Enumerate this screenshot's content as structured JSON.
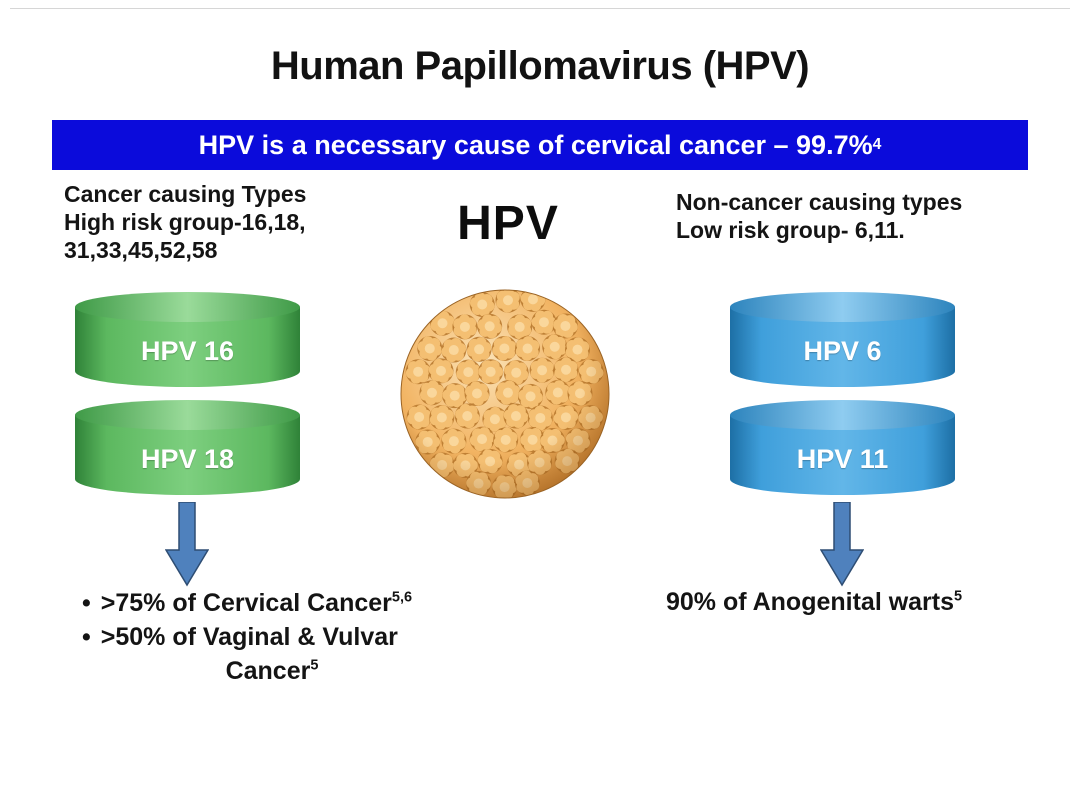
{
  "slide": {
    "title": "Human Papillomavirus (HPV)",
    "banner": {
      "text": "HPV is a necessary cause of cervical cancer – 99.7%",
      "superscript": "4",
      "bg_color": "#0b0bdb",
      "text_color": "#ffffff"
    },
    "center": {
      "label": "HPV",
      "virus_icon": "hpv-virion"
    },
    "left_column": {
      "heading_lines": [
        "Cancer causing Types",
        "High risk group-16,18,",
        "31,33,45,52,58"
      ],
      "cylinders": [
        {
          "label": "HPV 16"
        },
        {
          "label": "HPV 18"
        }
      ],
      "cylinder_color": "#54ae54",
      "results": [
        {
          "bullet": "•",
          "text": ">75% of Cervical Cancer",
          "superscript": "5,6"
        },
        {
          "bullet": "•",
          "text": ">50% of Vaginal & Vulvar",
          "superscript": ""
        },
        {
          "bullet": "",
          "text": "Cancer",
          "superscript": "5"
        }
      ]
    },
    "right_column": {
      "heading_lines": [
        "Non-cancer causing types",
        "Low risk group- 6,11."
      ],
      "cylinders": [
        {
          "label": "HPV 6"
        },
        {
          "label": "HPV 11"
        }
      ],
      "cylinder_color": "#3ea0d8",
      "result": {
        "text": "90% of Anogenital warts",
        "superscript": "5"
      }
    },
    "arrow_color": "#4f81bd",
    "virus_colors": {
      "base": "#f2b463",
      "edge": "#c87f2e",
      "outline": "#9a6324"
    }
  }
}
